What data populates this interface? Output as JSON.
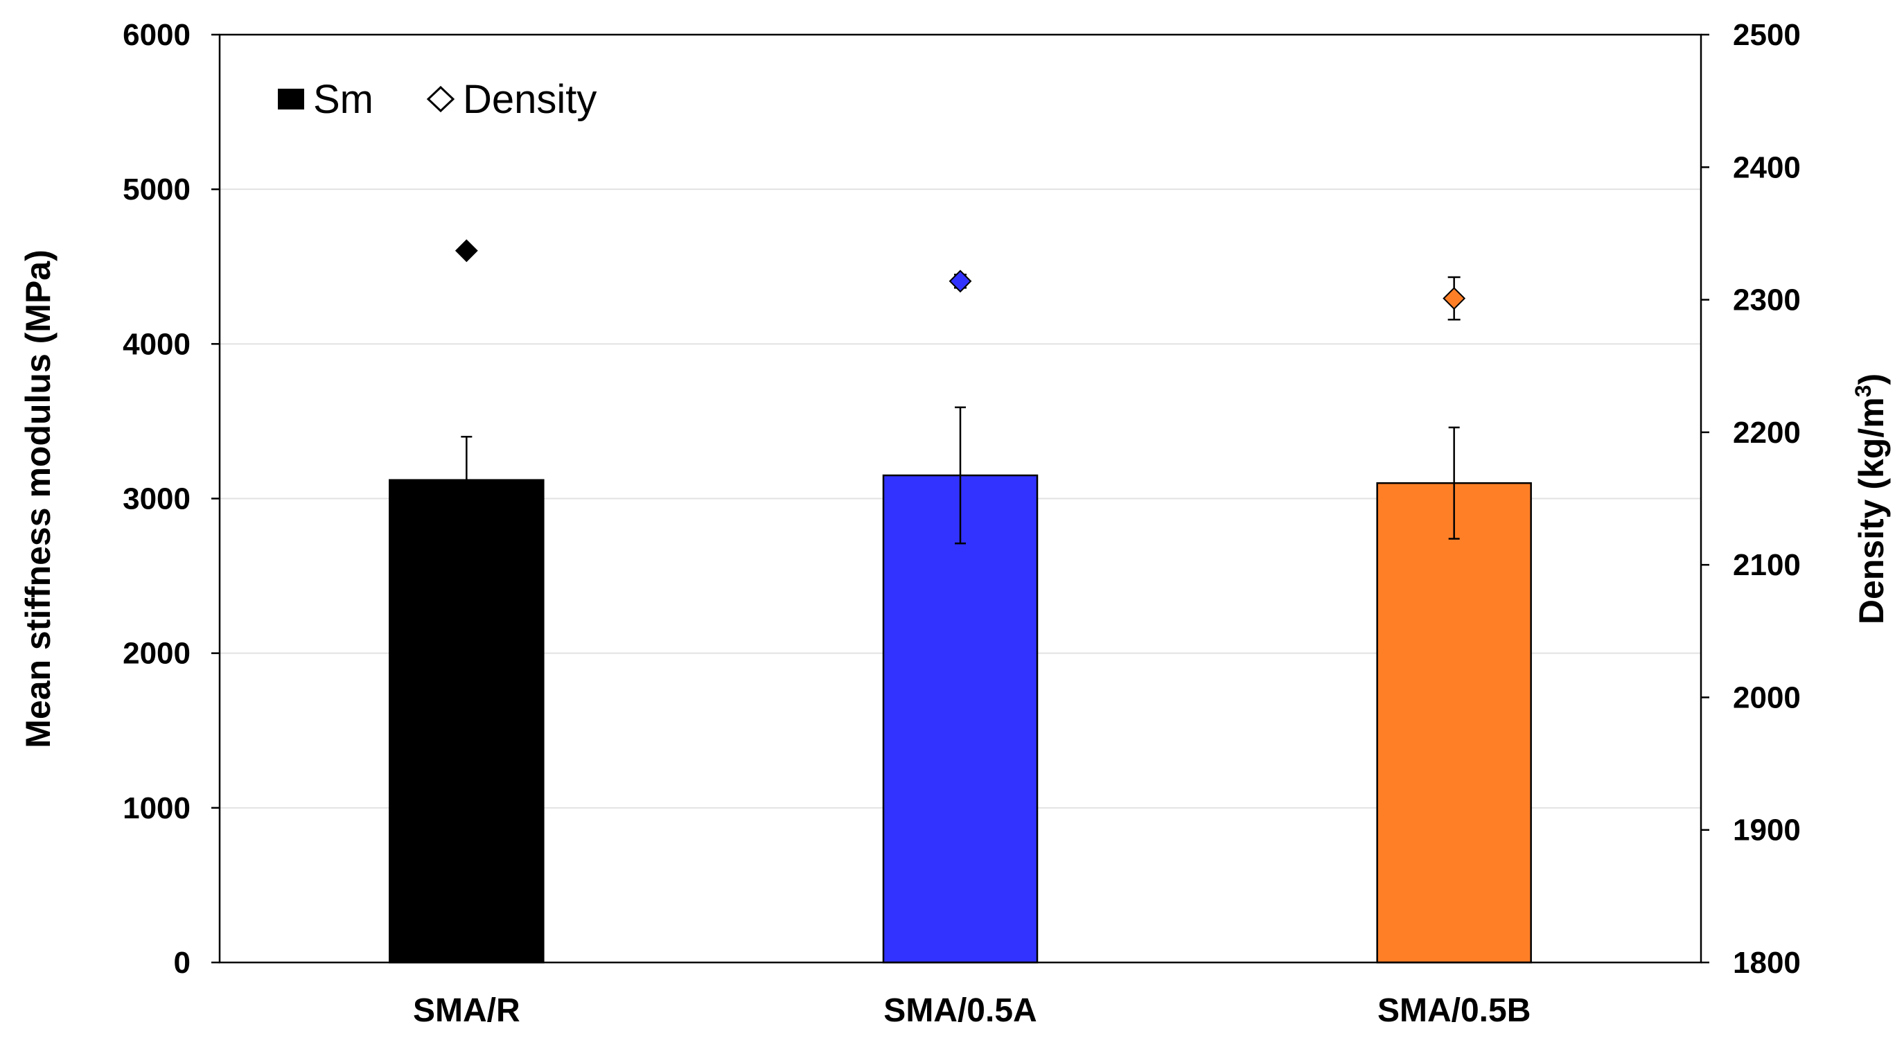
{
  "chart_data": {
    "type": "bar",
    "categories": [
      "SMA/R",
      "SMA/0.5A",
      "SMA/0.5B"
    ],
    "series": [
      {
        "name": "Sm",
        "axis": "left",
        "kind": "bar",
        "values": [
          3120,
          3150,
          3100
        ],
        "error": [
          280,
          440,
          360
        ]
      },
      {
        "name": "Density",
        "axis": "right",
        "kind": "scatter",
        "marker": "diamond",
        "values": [
          2337,
          2314,
          2301
        ],
        "error": [
          0,
          5,
          16
        ]
      }
    ],
    "colors": [
      "#000000",
      "#3333ff",
      "#ff7f27"
    ],
    "ylabel": "Mean stiffness modulus (MPa)",
    "y2label_main": "Density (kg/m",
    "y2label_sup": "3",
    "y2label_close": ")",
    "ylim": [
      0,
      6000
    ],
    "y2lim": [
      1800,
      2500
    ],
    "yticks": [
      "0",
      "1000",
      "2000",
      "3000",
      "4000",
      "5000",
      "6000"
    ],
    "y2ticks": [
      "1800",
      "1900",
      "2000",
      "2100",
      "2200",
      "2300",
      "2400",
      "2500"
    ],
    "grid": true,
    "legend": "top-left"
  }
}
